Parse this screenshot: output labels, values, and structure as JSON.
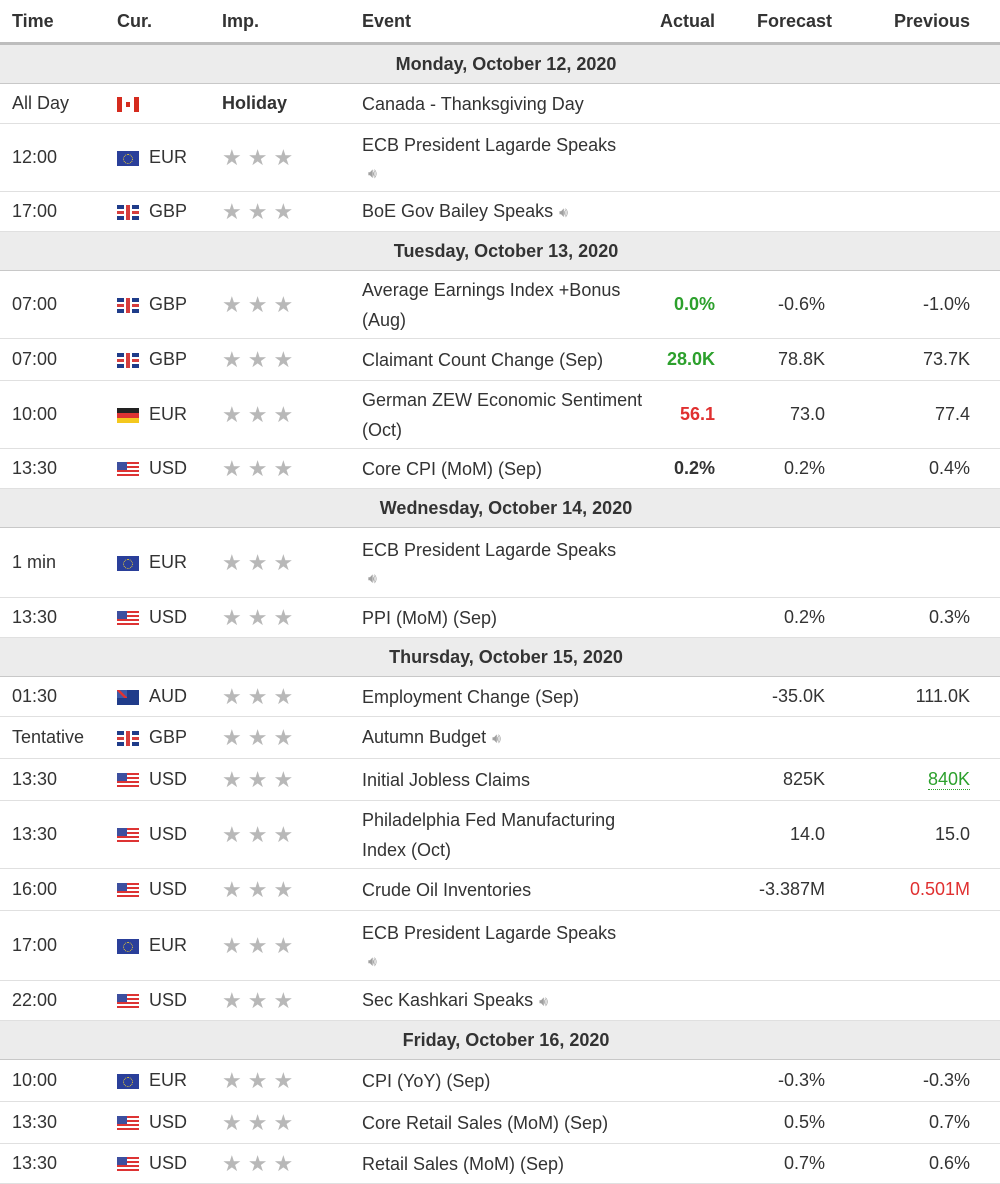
{
  "headers": {
    "time": "Time",
    "cur": "Cur.",
    "imp": "Imp.",
    "event": "Event",
    "actual": "Actual",
    "forecast": "Forecast",
    "previous": "Previous"
  },
  "colors": {
    "green": "#2ca02c",
    "red": "#e03030",
    "star": "#b8b8b8",
    "day_bg": "#ececec"
  },
  "days": [
    {
      "label": "Monday, October 12, 2020",
      "events": [
        {
          "time": "All Day",
          "flag": "cad",
          "cur": "",
          "imp": "Holiday",
          "event": "Canada - Thanksgiving Day",
          "actual": "",
          "forecast": "",
          "previous": ""
        },
        {
          "time": "12:00",
          "flag": "eur",
          "cur": "EUR",
          "imp": "",
          "event": "ECB President Lagarde Speaks",
          "speaker": true,
          "actual": "",
          "forecast": "",
          "previous": ""
        },
        {
          "time": "17:00",
          "flag": "gbp",
          "cur": "GBP",
          "imp": "",
          "event": "BoE Gov Bailey Speaks",
          "speaker_inline": true,
          "actual": "",
          "forecast": "",
          "previous": ""
        }
      ]
    },
    {
      "label": "Tuesday, October 13, 2020",
      "events": [
        {
          "time": "07:00",
          "flag": "gbp",
          "cur": "GBP",
          "event": "Average Earnings Index +Bonus (Aug)",
          "actual": "0.0%",
          "actual_style": "green",
          "forecast": "-0.6%",
          "previous": "-1.0%"
        },
        {
          "time": "07:00",
          "flag": "gbp",
          "cur": "GBP",
          "event": "Claimant Count Change (Sep)",
          "actual": "28.0K",
          "actual_style": "green",
          "forecast": "78.8K",
          "previous": "73.7K"
        },
        {
          "time": "10:00",
          "flag": "eurde",
          "cur": "EUR",
          "event": "German ZEW Economic Sentiment (Oct)",
          "actual": "56.1",
          "actual_style": "red",
          "forecast": "73.0",
          "previous": "77.4"
        },
        {
          "time": "13:30",
          "flag": "usd",
          "cur": "USD",
          "event": "Core CPI (MoM) (Sep)",
          "actual": "0.2%",
          "actual_style": "bold",
          "forecast": "0.2%",
          "previous": "0.4%"
        }
      ]
    },
    {
      "label": "Wednesday, October 14, 2020",
      "events": [
        {
          "time": "1 min",
          "flag": "eur",
          "cur": "EUR",
          "event": "ECB President Lagarde Speaks",
          "speaker": true,
          "actual": "",
          "forecast": "",
          "previous": ""
        },
        {
          "time": "13:30",
          "flag": "usd",
          "cur": "USD",
          "event": "PPI (MoM) (Sep)",
          "actual": "",
          "forecast": "0.2%",
          "previous": "0.3%"
        }
      ]
    },
    {
      "label": "Thursday, October 15, 2020",
      "events": [
        {
          "time": "01:30",
          "flag": "aud",
          "cur": "AUD",
          "event": "Employment Change (Sep)",
          "actual": "",
          "forecast": "-35.0K",
          "previous": "111.0K"
        },
        {
          "time": "Tentative",
          "flag": "gbp",
          "cur": "GBP",
          "event": "Autumn Budget",
          "speaker_inline": true,
          "actual": "",
          "forecast": "",
          "previous": ""
        },
        {
          "time": "13:30",
          "flag": "usd",
          "cur": "USD",
          "event": "Initial Jobless Claims",
          "actual": "",
          "forecast": "825K",
          "previous": "840K",
          "previous_style": "prev-green"
        },
        {
          "time": "13:30",
          "flag": "usd",
          "cur": "USD",
          "event": "Philadelphia Fed Manufacturing Index (Oct)",
          "actual": "",
          "forecast": "14.0",
          "previous": "15.0"
        },
        {
          "time": "16:00",
          "flag": "usd",
          "cur": "USD",
          "event": "Crude Oil Inventories",
          "actual": "",
          "forecast": "-3.387M",
          "previous": "0.501M",
          "previous_style": "prev-red"
        },
        {
          "time": "17:00",
          "flag": "eur",
          "cur": "EUR",
          "event": "ECB President Lagarde Speaks",
          "speaker": true,
          "actual": "",
          "forecast": "",
          "previous": ""
        },
        {
          "time": "22:00",
          "flag": "usd",
          "cur": "USD",
          "event": "Sec Kashkari Speaks",
          "speaker_inline": true,
          "actual": "",
          "forecast": "",
          "previous": ""
        }
      ]
    },
    {
      "label": "Friday, October 16, 2020",
      "events": [
        {
          "time": "10:00",
          "flag": "eur",
          "cur": "EUR",
          "event": "CPI (YoY) (Sep)",
          "actual": "",
          "forecast": "-0.3%",
          "previous": "-0.3%"
        },
        {
          "time": "13:30",
          "flag": "usd",
          "cur": "USD",
          "event": "Core Retail Sales (MoM) (Sep)",
          "actual": "",
          "forecast": "0.5%",
          "previous": "0.7%"
        },
        {
          "time": "13:30",
          "flag": "usd",
          "cur": "USD",
          "event": "Retail Sales (MoM) (Sep)",
          "actual": "",
          "forecast": "0.7%",
          "previous": "0.6%"
        }
      ]
    }
  ]
}
